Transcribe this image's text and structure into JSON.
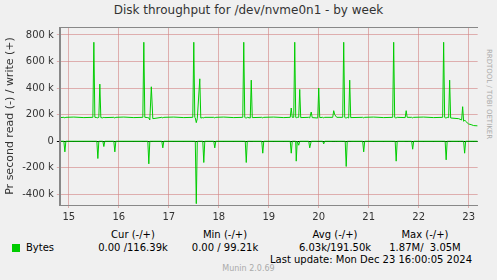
{
  "chart_data": {
    "type": "line",
    "title": "Disk throughput for /dev/nvme0n1 - by week",
    "y_label": "Pr second read (-) / write (+)",
    "side_text": "RRDTOOL / TOBI OETIKER",
    "x": [
      14.82,
      14.9,
      14.92,
      14.94,
      15.1,
      15.3,
      15.48,
      15.5,
      15.52,
      15.56,
      15.58,
      15.6,
      15.62,
      15.64,
      15.68,
      15.7,
      15.72,
      15.9,
      15.92,
      15.94,
      16.1,
      16.3,
      16.48,
      16.5,
      16.52,
      16.58,
      16.6,
      16.62,
      16.65,
      16.68,
      16.86,
      16.88,
      16.9,
      17.1,
      17.3,
      17.48,
      17.5,
      17.52,
      17.53,
      17.55,
      17.57,
      17.62,
      17.64,
      17.68,
      17.7,
      17.72,
      17.9,
      17.92,
      17.94,
      18.1,
      18.3,
      18.48,
      18.5,
      18.52,
      18.53,
      18.55,
      18.57,
      18.63,
      18.65,
      18.67,
      18.86,
      18.88,
      18.9,
      19.1,
      19.3,
      19.43,
      19.45,
      19.47,
      19.5,
      19.52,
      19.54,
      19.55,
      19.57,
      19.6,
      19.62,
      19.64,
      19.8,
      19.82,
      19.85,
      19.87,
      19.98,
      20.0,
      20.02,
      20.08,
      20.1,
      20.12,
      20.28,
      20.3,
      20.32,
      20.36,
      20.48,
      20.5,
      20.52,
      20.53,
      20.55,
      20.57,
      20.6,
      20.62,
      20.64,
      20.88,
      20.9,
      20.92,
      21.1,
      21.3,
      21.48,
      21.5,
      21.52,
      21.53,
      21.55,
      21.57,
      21.73,
      21.75,
      21.77,
      21.86,
      21.88,
      21.9,
      22.1,
      22.3,
      22.48,
      22.5,
      22.52,
      22.53,
      22.55,
      22.57,
      22.6,
      22.62,
      22.64,
      22.8,
      22.86,
      22.88,
      22.9,
      22.92,
      22.94,
      23.0,
      23.05,
      23.1,
      23.18
    ],
    "series": [
      {
        "name": "Bytes",
        "color": "#00cc00",
        "values": [
          178000,
          180000,
          176000,
          180000,
          182000,
          178000,
          180000,
          745000,
          180000,
          178000,
          176000,
          180000,
          430000,
          178000,
          176000,
          180000,
          178000,
          180000,
          175000,
          180000,
          182000,
          178000,
          180000,
          745000,
          180000,
          178000,
          176000,
          160000,
          410000,
          170000,
          180000,
          176000,
          180000,
          182000,
          178000,
          180000,
          745000,
          180000,
          176000,
          140000,
          170000,
          470000,
          175000,
          178000,
          176000,
          180000,
          180000,
          176000,
          180000,
          182000,
          178000,
          180000,
          745000,
          180000,
          176000,
          175000,
          180000,
          175000,
          460000,
          178000,
          180000,
          176000,
          180000,
          182000,
          178000,
          180000,
          250000,
          180000,
          180000,
          745000,
          180000,
          176000,
          180000,
          180000,
          390000,
          178000,
          180000,
          176000,
          220000,
          178000,
          175000,
          400000,
          178000,
          180000,
          176000,
          180000,
          180000,
          230000,
          200000,
          180000,
          180000,
          745000,
          180000,
          176000,
          175000,
          180000,
          175000,
          460000,
          178000,
          180000,
          176000,
          180000,
          182000,
          178000,
          180000,
          745000,
          180000,
          176000,
          176000,
          180000,
          178000,
          230000,
          180000,
          180000,
          176000,
          180000,
          182000,
          178000,
          180000,
          745000,
          180000,
          176000,
          175000,
          180000,
          178000,
          460000,
          175000,
          170000,
          160000,
          260000,
          150000,
          160000,
          150000,
          130000,
          125000,
          118000,
          116000
        ],
        "negative_values": [
          0,
          0,
          -80000,
          0,
          0,
          0,
          0,
          0,
          0,
          0,
          -130000,
          0,
          0,
          0,
          0,
          -40000,
          0,
          0,
          -80000,
          0,
          0,
          0,
          0,
          0,
          0,
          0,
          -170000,
          0,
          0,
          0,
          0,
          -50000,
          0,
          0,
          0,
          0,
          0,
          0,
          0,
          -470000,
          0,
          0,
          0,
          0,
          -160000,
          0,
          0,
          -50000,
          0,
          0,
          0,
          0,
          0,
          0,
          0,
          -160000,
          0,
          0,
          0,
          0,
          0,
          -90000,
          0,
          0,
          0,
          0,
          -90000,
          0,
          0,
          0,
          0,
          -150000,
          0,
          -30000,
          0,
          0,
          0,
          -50000,
          0,
          0,
          0,
          0,
          0,
          0,
          -20000,
          0,
          0,
          0,
          0,
          0,
          0,
          0,
          0,
          0,
          -190000,
          0,
          0,
          0,
          0,
          0,
          -80000,
          0,
          0,
          0,
          0,
          0,
          0,
          0,
          -150000,
          0,
          0,
          0,
          0,
          0,
          -60000,
          0,
          0,
          0,
          0,
          0,
          0,
          0,
          -140000,
          0,
          0,
          0,
          0,
          0,
          0,
          0,
          0,
          -90000,
          0,
          0,
          0,
          0,
          0
        ]
      }
    ],
    "xlim": [
      14.82,
      23.18
    ],
    "xticks": [
      15,
      16,
      17,
      18,
      19,
      20,
      21,
      22,
      23
    ],
    "ylim": [
      -480000,
      860000
    ],
    "yticks": [
      {
        "value": -400000,
        "label": "-400 k"
      },
      {
        "value": -200000,
        "label": "-200 k"
      },
      0,
      {
        "value": 200000,
        "label": "200 k"
      },
      {
        "value": 400000,
        "label": "400 k"
      },
      {
        "value": 600000,
        "label": "600 k"
      },
      {
        "value": 800000,
        "label": "800 k"
      }
    ],
    "grid": true,
    "line_style": "solid",
    "stats": {
      "headers": [
        "Cur (-/+)",
        "Min (-/+)",
        "Avg (-/+)",
        "Max (-/+)"
      ],
      "values": [
        "0.00 /116.39k",
        "0.00 / 99.21k",
        "6.03k/191.50k",
        "1.87M/  3.05M"
      ]
    },
    "last_update": "Last update: Mon Dec 23 16:00:05 2024",
    "footer": "Munin 2.0.69"
  }
}
